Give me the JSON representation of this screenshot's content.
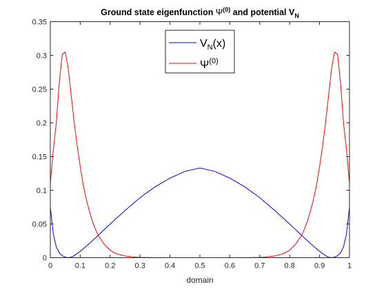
{
  "chart_data": {
    "type": "line",
    "title": {
      "main": "Ground state eigenfunction ",
      "psi_symbol": "Ψ",
      "psi_sup": "(0)",
      "middle": " and potential V",
      "v_sub": "N"
    },
    "xlabel": "domain",
    "ylabel": "",
    "xlim": [
      0,
      1
    ],
    "ylim": [
      0,
      0.35
    ],
    "xticks": [
      0,
      0.1,
      0.2,
      0.3,
      0.4,
      0.5,
      0.6,
      0.7,
      0.8,
      0.9,
      1
    ],
    "xtick_labels": [
      "0",
      "0.1",
      "0.2",
      "0.3",
      "0.4",
      "0.5",
      "0.6",
      "0.7",
      "0.8",
      "0.9",
      "1"
    ],
    "yticks": [
      0,
      0.05,
      0.1,
      0.15,
      0.2,
      0.25,
      0.3,
      0.35
    ],
    "ytick_labels": [
      "0",
      "0.05",
      "0.1",
      "0.15",
      "0.2",
      "0.25",
      "0.3",
      "0.35"
    ],
    "grid": false,
    "legend": {
      "placement": "top-center",
      "entries": [
        {
          "main": "V",
          "sub": "N",
          "tail": "(x)"
        },
        {
          "main": "Ψ",
          "sup": "(0)"
        }
      ]
    },
    "colors": {
      "series_v": "#0000ff",
      "series_psi": "#ff0000",
      "axes": "#262626"
    },
    "series": [
      {
        "label_key": "V_N(x)",
        "x": [
          0,
          0.01,
          0.02,
          0.03,
          0.04,
          0.05,
          0.06,
          0.07,
          0.08,
          0.1,
          0.12,
          0.15,
          0.2,
          0.25,
          0.3,
          0.35,
          0.4,
          0.45,
          0.5,
          0.55,
          0.6,
          0.65,
          0.7,
          0.75,
          0.8,
          0.85,
          0.88,
          0.9,
          0.92,
          0.93,
          0.94,
          0.95,
          0.96,
          0.97,
          0.98,
          0.99,
          1
        ],
        "y": [
          0.075,
          0.035,
          0.016,
          0.007,
          0.003,
          0.0008,
          0.0001,
          0.0008,
          0.003,
          0.0095,
          0.017,
          0.029,
          0.05,
          0.07,
          0.089,
          0.105,
          0.118,
          0.128,
          0.133,
          0.128,
          0.118,
          0.105,
          0.089,
          0.07,
          0.05,
          0.029,
          0.017,
          0.0095,
          0.003,
          0.0008,
          0.0001,
          0.0008,
          0.003,
          0.007,
          0.016,
          0.035,
          0.075
        ]
      },
      {
        "label_key": "Psi0",
        "x": [
          0,
          0.01,
          0.02,
          0.03,
          0.04,
          0.05,
          0.06,
          0.07,
          0.08,
          0.09,
          0.1,
          0.11,
          0.12,
          0.13,
          0.14,
          0.15,
          0.16,
          0.18,
          0.2,
          0.22,
          0.25,
          0.28,
          0.3,
          0.35,
          0.4,
          0.5,
          0.6,
          0.65,
          0.7,
          0.72,
          0.75,
          0.78,
          0.8,
          0.82,
          0.84,
          0.85,
          0.86,
          0.87,
          0.88,
          0.89,
          0.9,
          0.91,
          0.92,
          0.93,
          0.94,
          0.95,
          0.96,
          0.97,
          0.98,
          0.99,
          1
        ],
        "y": [
          0.11,
          0.16,
          0.2,
          0.26,
          0.302,
          0.305,
          0.28,
          0.24,
          0.2,
          0.165,
          0.135,
          0.108,
          0.087,
          0.07,
          0.055,
          0.043,
          0.033,
          0.02,
          0.011,
          0.006,
          0.0025,
          0.001,
          0.0005,
          0.0001,
          0,
          0,
          0,
          0.0001,
          0.0005,
          0.001,
          0.0025,
          0.006,
          0.011,
          0.02,
          0.033,
          0.043,
          0.055,
          0.07,
          0.087,
          0.108,
          0.135,
          0.165,
          0.2,
          0.24,
          0.28,
          0.305,
          0.302,
          0.26,
          0.2,
          0.16,
          0.11
        ]
      }
    ]
  }
}
